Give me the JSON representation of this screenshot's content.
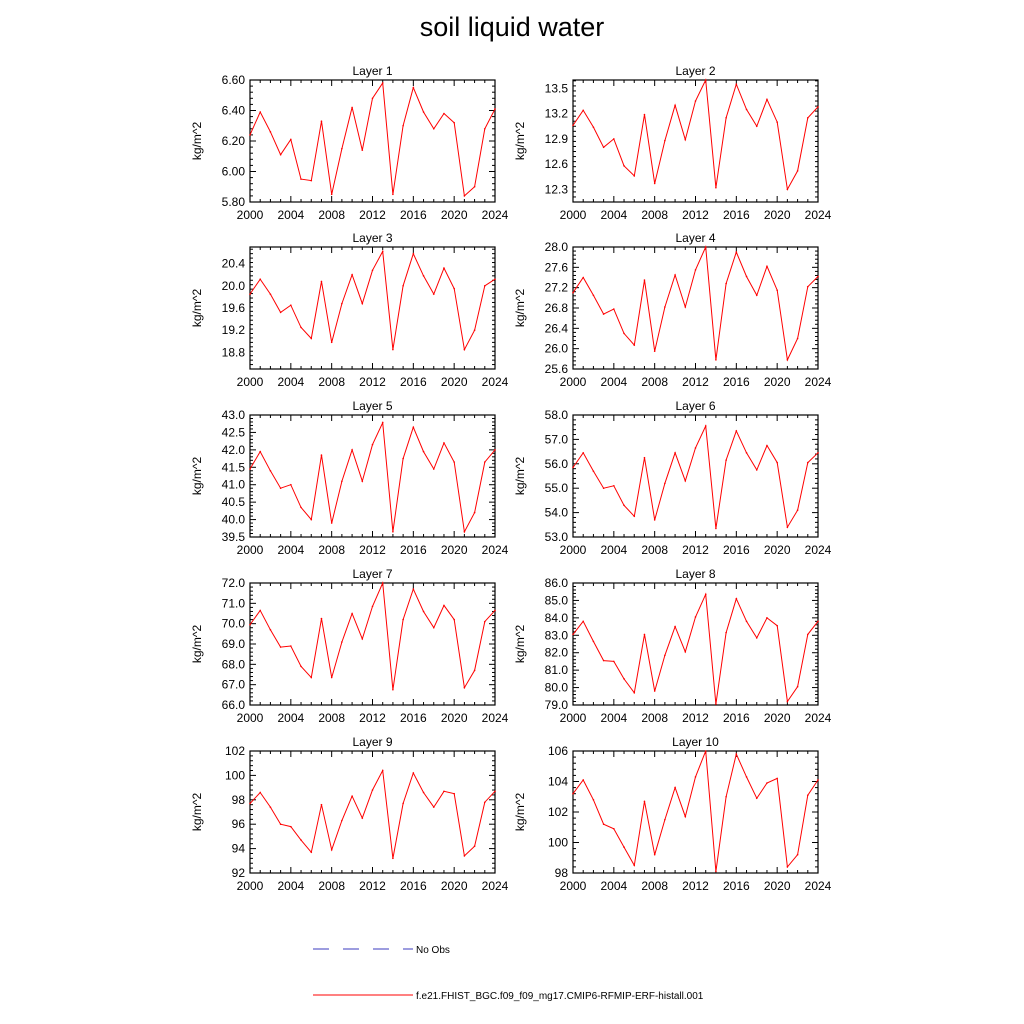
{
  "title": "soil liquid water",
  "legend": {
    "obs_label": "No Obs",
    "model_label": "f.e21.FHIST_BGC.f09_f09_mg17.CMIP6-RFMIP-ERF-histall.001",
    "obs_color": "#3b3bbf",
    "model_color": "#ff0000"
  },
  "chart_data": [
    {
      "type": "line",
      "title": "Layer 1",
      "ylabel": "kg/m^2",
      "xlim": [
        2000,
        2024
      ],
      "ylim": [
        5.8,
        6.6
      ],
      "yticks": [
        "5.80",
        "6.00",
        "6.20",
        "6.40",
        "6.60"
      ],
      "xticks": [
        "2000",
        "2004",
        "2008",
        "2012",
        "2016",
        "2020",
        "2024"
      ],
      "x": [
        2000,
        2001,
        2002,
        2003,
        2004,
        2005,
        2006,
        2007,
        2008,
        2009,
        2010,
        2011,
        2012,
        2013,
        2014,
        2015,
        2016,
        2017,
        2018,
        2019,
        2020,
        2021,
        2022,
        2023,
        2024
      ],
      "values": [
        6.24,
        6.39,
        6.26,
        6.11,
        6.21,
        5.95,
        5.94,
        6.33,
        5.85,
        6.15,
        6.42,
        6.14,
        6.48,
        6.58,
        5.85,
        6.3,
        6.55,
        6.39,
        6.28,
        6.38,
        6.32,
        5.84,
        5.9,
        6.28,
        6.41
      ]
    },
    {
      "type": "line",
      "title": "Layer 2",
      "ylabel": "kg/m^2",
      "xlim": [
        2000,
        2024
      ],
      "ylim": [
        12.15,
        13.6
      ],
      "yticks": [
        "12.3",
        "12.6",
        "12.9",
        "13.2",
        "13.5"
      ],
      "xticks": [
        "2000",
        "2004",
        "2008",
        "2012",
        "2016",
        "2020",
        "2024"
      ],
      "x": [
        2000,
        2001,
        2002,
        2003,
        2004,
        2005,
        2006,
        2007,
        2008,
        2009,
        2010,
        2011,
        2012,
        2013,
        2014,
        2015,
        2016,
        2017,
        2018,
        2019,
        2020,
        2021,
        2022,
        2023,
        2024
      ],
      "values": [
        13.06,
        13.24,
        13.04,
        12.8,
        12.9,
        12.58,
        12.46,
        13.19,
        12.37,
        12.88,
        13.3,
        12.89,
        13.35,
        13.6,
        12.32,
        13.15,
        13.55,
        13.25,
        13.05,
        13.37,
        13.1,
        12.3,
        12.52,
        13.15,
        13.28
      ]
    },
    {
      "type": "line",
      "title": "Layer 3",
      "ylabel": "kg/m^2",
      "xlim": [
        2000,
        2024
      ],
      "ylim": [
        18.5,
        20.7
      ],
      "yticks": [
        "18.8",
        "19.2",
        "19.6",
        "20.0",
        "20.4"
      ],
      "xticks": [
        "2000",
        "2004",
        "2008",
        "2012",
        "2016",
        "2020",
        "2024"
      ],
      "x": [
        2000,
        2001,
        2002,
        2003,
        2004,
        2005,
        2006,
        2007,
        2008,
        2009,
        2010,
        2011,
        2012,
        2013,
        2014,
        2015,
        2016,
        2017,
        2018,
        2019,
        2020,
        2021,
        2022,
        2023,
        2024
      ],
      "values": [
        19.85,
        20.12,
        19.85,
        19.52,
        19.65,
        19.25,
        19.05,
        20.08,
        18.98,
        19.68,
        20.2,
        19.68,
        20.28,
        20.62,
        18.85,
        20.0,
        20.58,
        20.18,
        19.85,
        20.32,
        19.95,
        18.85,
        19.2,
        20.0,
        20.12
      ]
    },
    {
      "type": "line",
      "title": "Layer 4",
      "ylabel": "kg/m^2",
      "xlim": [
        2000,
        2024
      ],
      "ylim": [
        25.6,
        28.0
      ],
      "yticks": [
        "25.6",
        "26.0",
        "26.4",
        "26.8",
        "27.2",
        "27.6",
        "28.0"
      ],
      "xticks": [
        "2000",
        "2004",
        "2008",
        "2012",
        "2016",
        "2020",
        "2024"
      ],
      "x": [
        2000,
        2001,
        2002,
        2003,
        2004,
        2005,
        2006,
        2007,
        2008,
        2009,
        2010,
        2011,
        2012,
        2013,
        2014,
        2015,
        2016,
        2017,
        2018,
        2019,
        2020,
        2021,
        2022,
        2023,
        2024
      ],
      "values": [
        27.1,
        27.4,
        27.05,
        26.68,
        26.78,
        26.3,
        26.07,
        27.35,
        25.95,
        26.82,
        27.45,
        26.82,
        27.55,
        28.0,
        25.78,
        27.28,
        27.9,
        27.42,
        27.05,
        27.62,
        27.15,
        25.78,
        26.2,
        27.22,
        27.42
      ]
    },
    {
      "type": "line",
      "title": "Layer 5",
      "ylabel": "kg/m^2",
      "xlim": [
        2000,
        2024
      ],
      "ylim": [
        39.5,
        43.0
      ],
      "yticks": [
        "39.5",
        "40.0",
        "40.5",
        "41.0",
        "41.5",
        "42.0",
        "42.5",
        "43.0"
      ],
      "xticks": [
        "2000",
        "2004",
        "2008",
        "2012",
        "2016",
        "2020",
        "2024"
      ],
      "x": [
        2000,
        2001,
        2002,
        2003,
        2004,
        2005,
        2006,
        2007,
        2008,
        2009,
        2010,
        2011,
        2012,
        2013,
        2014,
        2015,
        2016,
        2017,
        2018,
        2019,
        2020,
        2021,
        2022,
        2023,
        2024
      ],
      "values": [
        41.45,
        41.95,
        41.4,
        40.9,
        41.0,
        40.35,
        40.0,
        41.85,
        39.9,
        41.1,
        42.0,
        41.1,
        42.15,
        42.78,
        39.65,
        41.75,
        42.65,
        41.95,
        41.45,
        42.2,
        41.65,
        39.65,
        40.2,
        41.65,
        42.0
      ]
    },
    {
      "type": "line",
      "title": "Layer 6",
      "ylabel": "kg/m^2",
      "xlim": [
        2000,
        2024
      ],
      "ylim": [
        53.0,
        58.0
      ],
      "yticks": [
        "53.0",
        "54.0",
        "55.0",
        "56.0",
        "57.0",
        "58.0"
      ],
      "xticks": [
        "2000",
        "2004",
        "2008",
        "2012",
        "2016",
        "2020",
        "2024"
      ],
      "x": [
        2000,
        2001,
        2002,
        2003,
        2004,
        2005,
        2006,
        2007,
        2008,
        2009,
        2010,
        2011,
        2012,
        2013,
        2014,
        2015,
        2016,
        2017,
        2018,
        2019,
        2020,
        2021,
        2022,
        2023,
        2024
      ],
      "values": [
        55.85,
        56.45,
        55.7,
        55.0,
        55.1,
        54.3,
        53.85,
        56.25,
        53.7,
        55.2,
        56.45,
        55.3,
        56.65,
        57.55,
        53.35,
        56.15,
        57.35,
        56.45,
        55.75,
        56.75,
        56.05,
        53.4,
        54.1,
        56.05,
        56.45
      ]
    },
    {
      "type": "line",
      "title": "Layer 7",
      "ylabel": "kg/m^2",
      "xlim": [
        2000,
        2024
      ],
      "ylim": [
        66.0,
        72.0
      ],
      "yticks": [
        "66.0",
        "67.0",
        "68.0",
        "69.0",
        "70.0",
        "71.0",
        "72.0"
      ],
      "xticks": [
        "2000",
        "2004",
        "2008",
        "2012",
        "2016",
        "2020",
        "2024"
      ],
      "x": [
        2000,
        2001,
        2002,
        2003,
        2004,
        2005,
        2006,
        2007,
        2008,
        2009,
        2010,
        2011,
        2012,
        2013,
        2014,
        2015,
        2016,
        2017,
        2018,
        2019,
        2020,
        2021,
        2022,
        2023,
        2024
      ],
      "values": [
        69.95,
        70.65,
        69.7,
        68.85,
        68.9,
        67.9,
        67.35,
        70.25,
        67.35,
        69.1,
        70.5,
        69.25,
        70.85,
        72.0,
        66.75,
        70.2,
        71.7,
        70.6,
        69.8,
        70.9,
        70.2,
        66.85,
        67.7,
        70.1,
        70.65
      ]
    },
    {
      "type": "line",
      "title": "Layer 8",
      "ylabel": "kg/m^2",
      "xlim": [
        2000,
        2024
      ],
      "ylim": [
        79.0,
        86.0
      ],
      "yticks": [
        "79.0",
        "80.0",
        "81.0",
        "82.0",
        "83.0",
        "84.0",
        "85.0",
        "86.0"
      ],
      "xticks": [
        "2000",
        "2004",
        "2008",
        "2012",
        "2016",
        "2020",
        "2024"
      ],
      "x": [
        2000,
        2001,
        2002,
        2003,
        2004,
        2005,
        2006,
        2007,
        2008,
        2009,
        2010,
        2011,
        2012,
        2013,
        2014,
        2015,
        2016,
        2017,
        2018,
        2019,
        2020,
        2021,
        2022,
        2023,
        2024
      ],
      "values": [
        83.05,
        83.8,
        82.65,
        81.55,
        81.5,
        80.5,
        79.7,
        83.05,
        79.8,
        81.85,
        83.5,
        82.05,
        84.05,
        85.35,
        79.05,
        83.15,
        85.1,
        83.8,
        82.85,
        84.0,
        83.55,
        79.2,
        80.05,
        83.05,
        83.8
      ]
    },
    {
      "type": "line",
      "title": "Layer 9",
      "ylabel": "kg/m^2",
      "xlim": [
        2000,
        2024
      ],
      "ylim": [
        92,
        102
      ],
      "yticks": [
        "92",
        "94",
        "96",
        "98",
        "100",
        "102"
      ],
      "xticks": [
        "2000",
        "2004",
        "2008",
        "2012",
        "2016",
        "2020",
        "2024"
      ],
      "x": [
        2000,
        2001,
        2002,
        2003,
        2004,
        2005,
        2006,
        2007,
        2008,
        2009,
        2010,
        2011,
        2012,
        2013,
        2014,
        2015,
        2016,
        2017,
        2018,
        2019,
        2020,
        2021,
        2022,
        2023,
        2024
      ],
      "values": [
        97.7,
        98.6,
        97.4,
        96.0,
        95.8,
        94.7,
        93.7,
        97.6,
        93.9,
        96.3,
        98.3,
        96.5,
        98.8,
        100.4,
        93.2,
        97.7,
        100.2,
        98.6,
        97.4,
        98.7,
        98.5,
        93.4,
        94.2,
        97.8,
        98.7
      ]
    },
    {
      "type": "line",
      "title": "Layer 10",
      "ylabel": "kg/m^2",
      "xlim": [
        2000,
        2024
      ],
      "ylim": [
        98,
        106
      ],
      "yticks": [
        "98",
        "100",
        "102",
        "104",
        "106"
      ],
      "xticks": [
        "2000",
        "2004",
        "2008",
        "2012",
        "2016",
        "2020",
        "2024"
      ],
      "x": [
        2000,
        2001,
        2002,
        2003,
        2004,
        2005,
        2006,
        2007,
        2008,
        2009,
        2010,
        2011,
        2012,
        2013,
        2014,
        2015,
        2016,
        2017,
        2018,
        2019,
        2020,
        2021,
        2022,
        2023,
        2024
      ],
      "values": [
        103.2,
        104.1,
        102.8,
        101.2,
        100.9,
        99.7,
        98.5,
        102.7,
        99.2,
        101.5,
        103.6,
        101.7,
        104.3,
        106.0,
        98.1,
        103.0,
        105.8,
        104.3,
        102.9,
        103.9,
        104.2,
        98.4,
        99.2,
        103.1,
        104.1
      ]
    }
  ]
}
